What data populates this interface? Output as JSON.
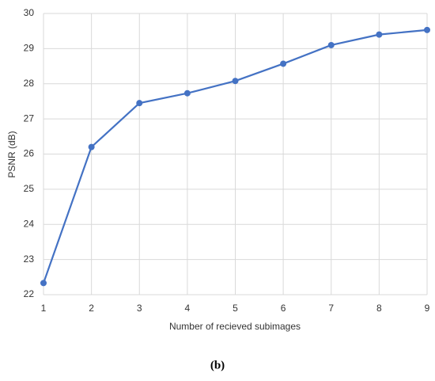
{
  "chart_data": {
    "type": "line",
    "x": [
      1,
      2,
      3,
      4,
      5,
      6,
      7,
      8,
      9
    ],
    "values": [
      22.33,
      26.2,
      27.45,
      27.73,
      28.08,
      28.57,
      29.1,
      29.4,
      29.53
    ],
    "color": "#4472c4",
    "xlim": [
      1,
      9
    ],
    "xticks": [
      1,
      2,
      3,
      4,
      5,
      6,
      7,
      8,
      9
    ],
    "ylim": [
      22,
      30
    ],
    "yticks": [
      22,
      23,
      24,
      25,
      26,
      27,
      28,
      29,
      30
    ],
    "grid": true,
    "xlabel": "Number of recieved subimages",
    "ylabel": "PSNR (dB)",
    "caption": "(b)"
  }
}
